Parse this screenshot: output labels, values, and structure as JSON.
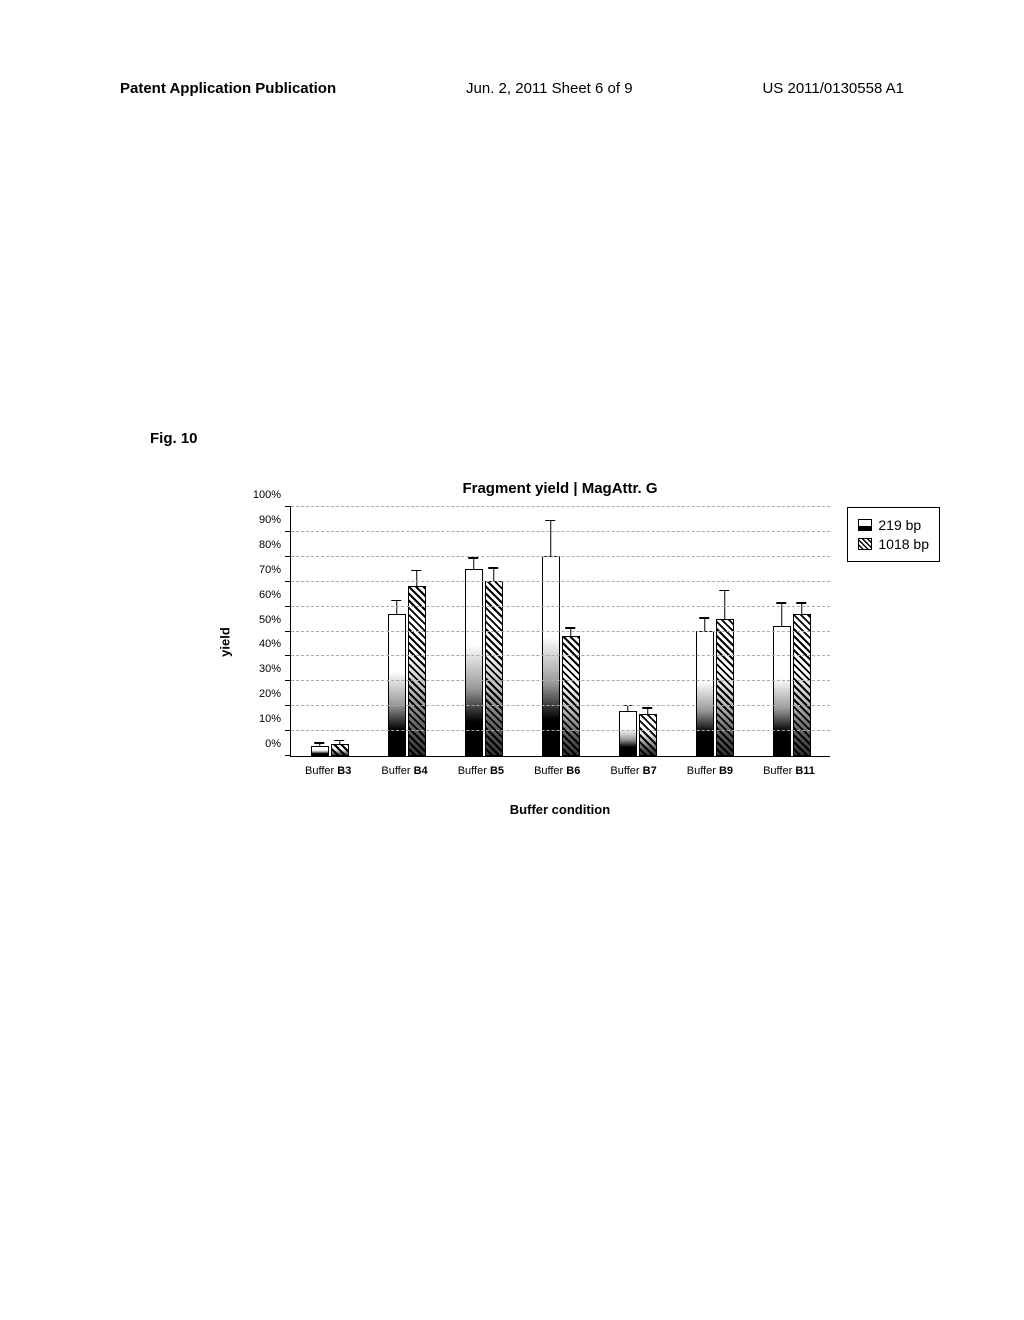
{
  "header": {
    "left": "Patent Application Publication",
    "center": "Jun. 2, 2011  Sheet 6 of 9",
    "right": "US 2011/0130558 A1"
  },
  "figure_label": "Fig. 10",
  "chart": {
    "title": "Fragment  yield  | MagAttr. G",
    "y_axis_title": "yield",
    "x_axis_title": "Buffer condition",
    "y_max": 100,
    "y_ticks": [
      0,
      10,
      20,
      30,
      40,
      50,
      60,
      70,
      80,
      90,
      100
    ],
    "y_tick_labels": [
      "0%",
      "10%",
      "20%",
      "30%",
      "40%",
      "50%",
      "60%",
      "70%",
      "80%",
      "90%",
      "100%"
    ],
    "categories": [
      "Buffer B3",
      "Buffer B4",
      "Buffer B5",
      "Buffer B6",
      "Buffer B7",
      "Buffer B9",
      "Buffer B11"
    ],
    "series": [
      {
        "name": "219 bp",
        "values": [
          4,
          57,
          75,
          80,
          18,
          50,
          52
        ],
        "errors": [
          2,
          6,
          5,
          15,
          3,
          6,
          10
        ]
      },
      {
        "name": "1018 bp",
        "values": [
          5,
          68,
          70,
          48,
          17,
          55,
          57
        ],
        "errors": [
          2,
          7,
          6,
          4,
          3,
          12,
          5
        ]
      }
    ],
    "legend": {
      "items": [
        "219 bp",
        "1018 bp"
      ]
    },
    "colors": {
      "background": "#ffffff",
      "axis": "#000000",
      "grid": "#aaaaaa",
      "bar_border": "#000000"
    }
  }
}
